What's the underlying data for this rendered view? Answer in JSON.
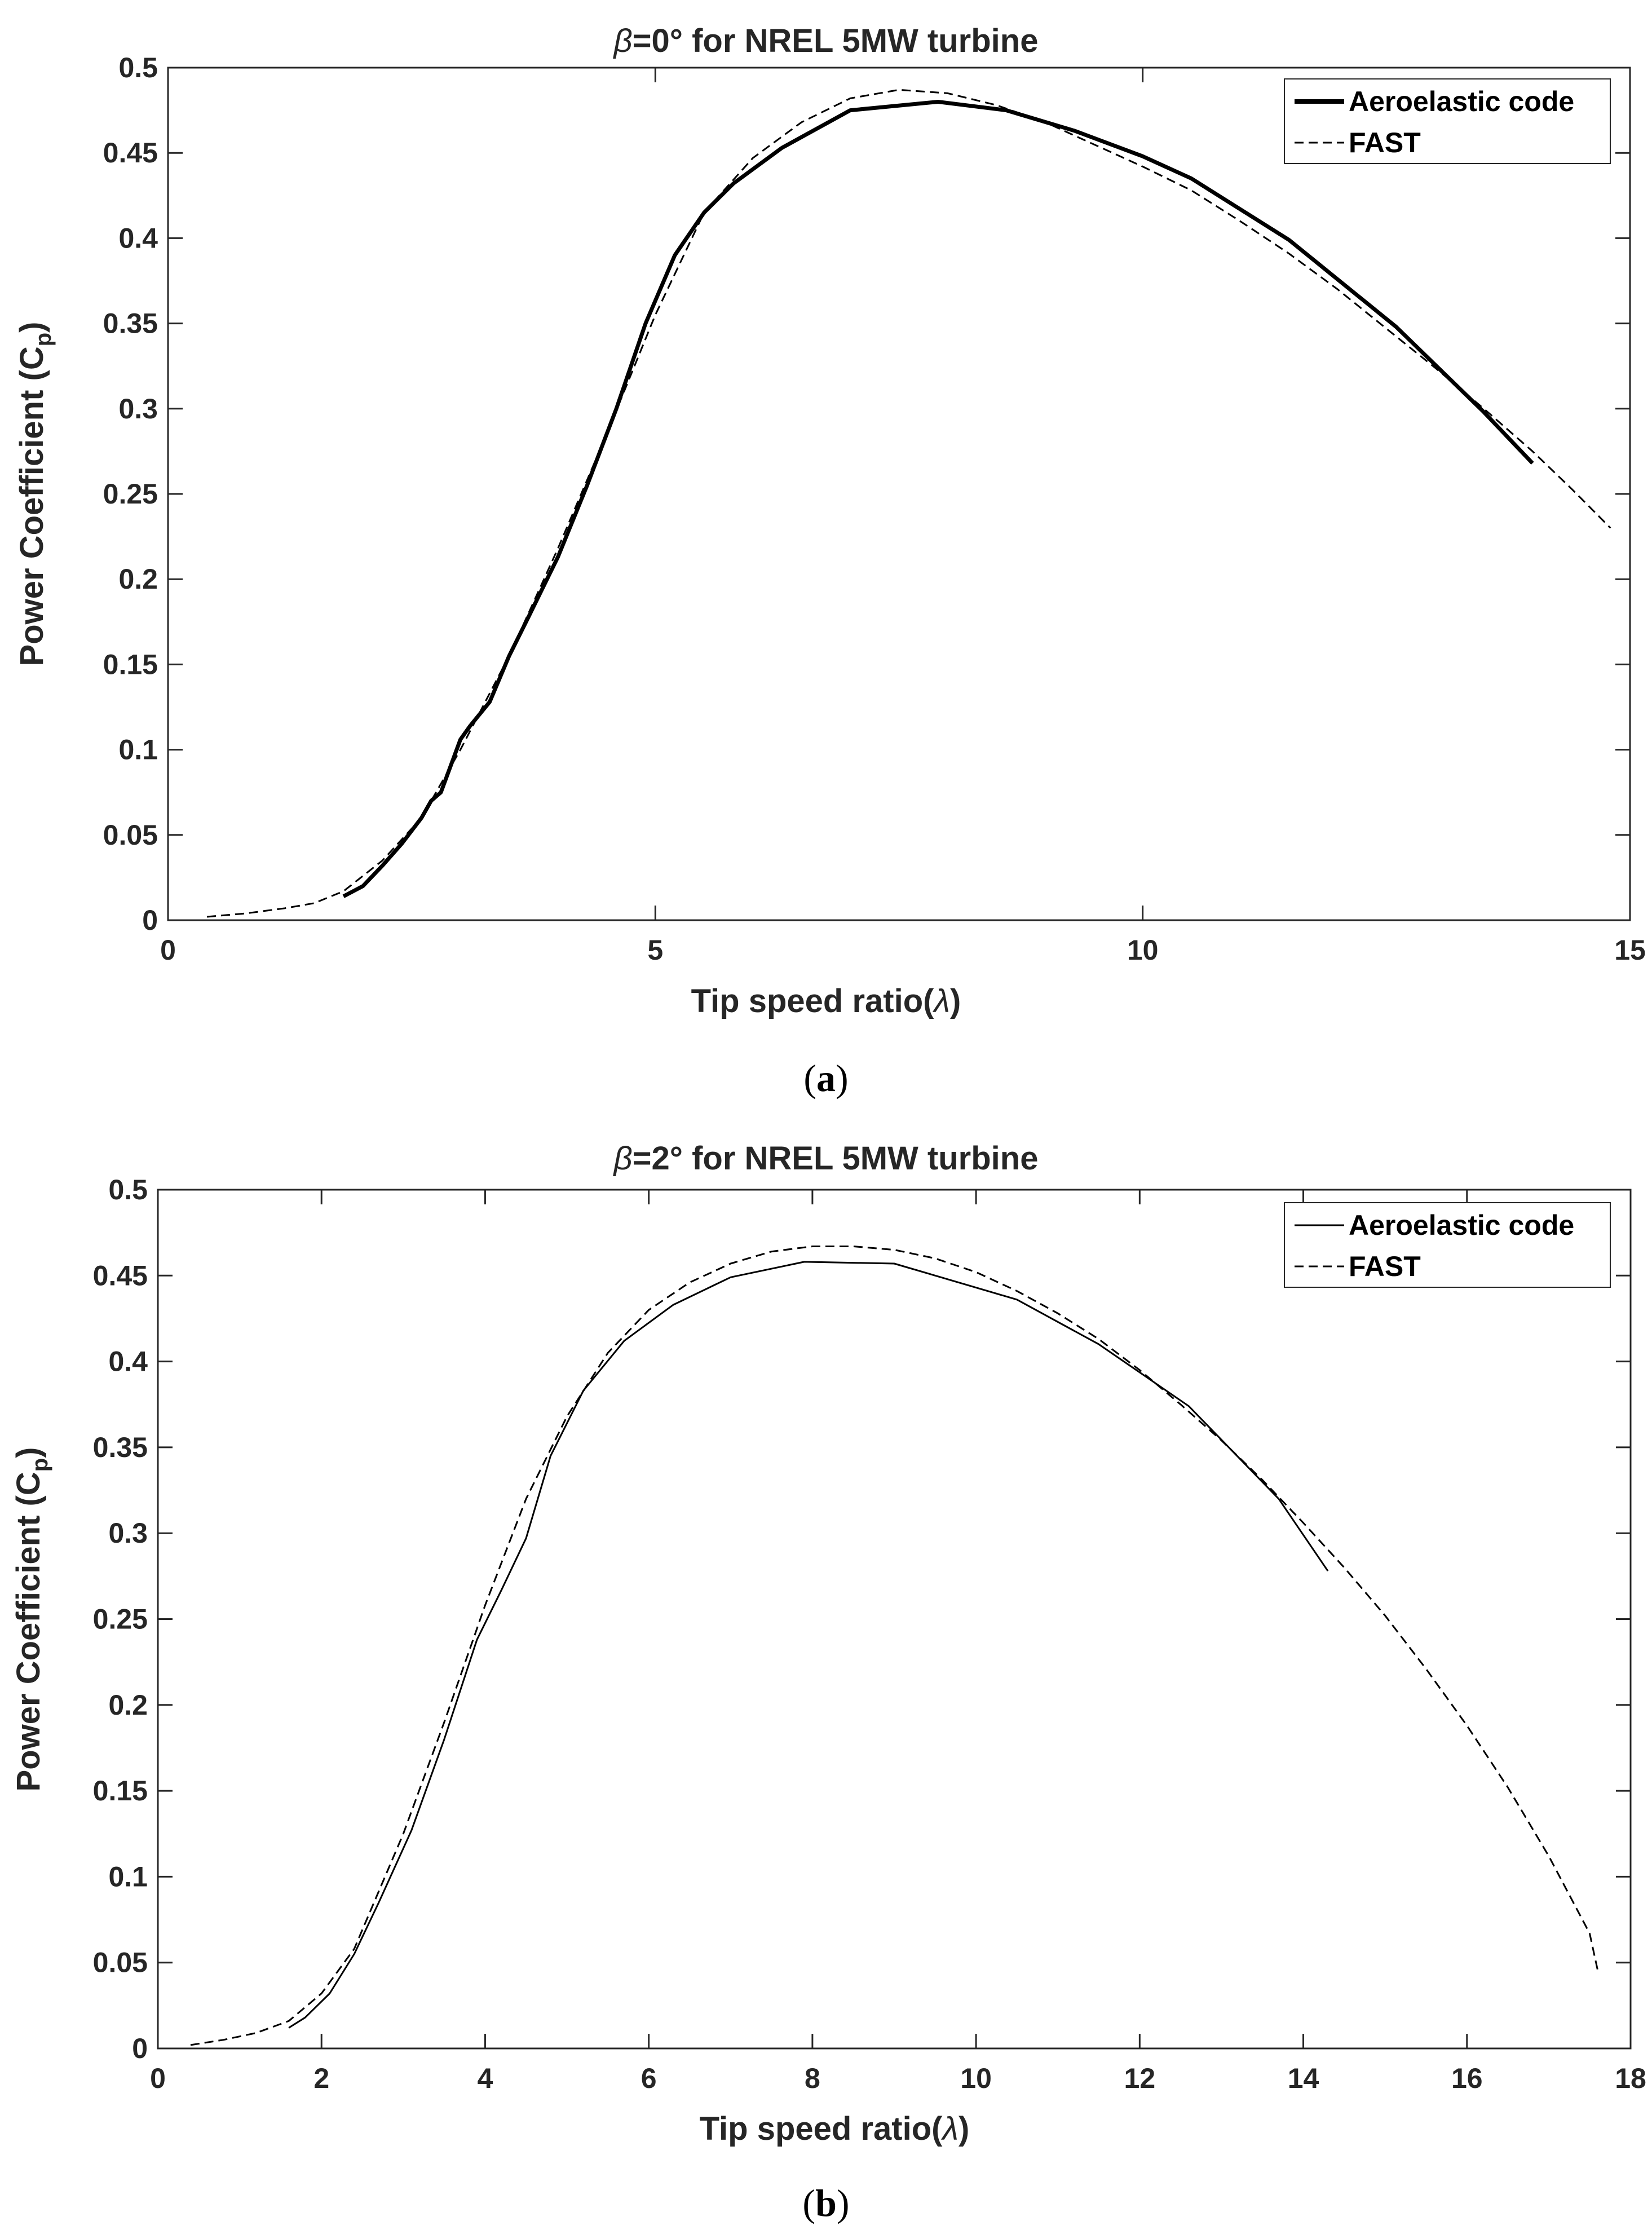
{
  "figure": {
    "captions": [
      {
        "open": "(",
        "letter": "a",
        "close": ")"
      },
      {
        "open": "(",
        "letter": "b",
        "close": ")"
      }
    ]
  },
  "chart_data": [
    {
      "type": "line",
      "title_symbol": "β",
      "title": "=0° for NREL 5MW turbine",
      "xlabel_prefix": "Tip speed ratio(",
      "xlabel_symbol": "λ",
      "xlabel_suffix": ")",
      "ylabel_main": "Power Coefficient (C",
      "ylabel_sub": "p",
      "ylabel_close": ")",
      "xlim": [
        0,
        15
      ],
      "ylim": [
        0,
        0.5
      ],
      "xticks": [
        0,
        5,
        10,
        15
      ],
      "yticks": [
        0,
        0.05,
        0.1,
        0.15,
        0.2,
        0.25,
        0.3,
        0.35,
        0.4,
        0.45,
        0.5
      ],
      "legend_position": "top-right",
      "series": [
        {
          "name": "Aeroelastic code",
          "style": "solid-thick",
          "color": "#000000",
          "x": [
            1.8,
            2.0,
            2.2,
            2.4,
            2.6,
            2.7,
            2.8,
            3.0,
            3.1,
            3.3,
            3.5,
            3.7,
            4.0,
            4.3,
            4.6,
            4.9,
            5.2,
            5.5,
            5.8,
            6.3,
            7.0,
            7.9,
            8.6,
            9.3,
            10.0,
            10.5,
            11.5,
            12.6,
            13.5,
            14.0
          ],
          "y": [
            0.014,
            0.02,
            0.032,
            0.045,
            0.06,
            0.07,
            0.075,
            0.106,
            0.114,
            0.128,
            0.155,
            0.178,
            0.213,
            0.255,
            0.3,
            0.35,
            0.39,
            0.415,
            0.432,
            0.453,
            0.475,
            0.48,
            0.475,
            0.463,
            0.448,
            0.435,
            0.399,
            0.348,
            0.298,
            0.268
          ]
        },
        {
          "name": "FAST",
          "style": "dashed",
          "color": "#000000",
          "x": [
            0.4,
            0.8,
            1.2,
            1.5,
            1.8,
            2.2,
            2.6,
            3.0,
            3.5,
            4.0,
            4.5,
            5.0,
            5.5,
            6.0,
            6.5,
            7.0,
            7.5,
            8.0,
            8.5,
            9.0,
            9.5,
            10.0,
            10.5,
            11.0,
            11.5,
            12.0,
            12.5,
            13.0,
            13.5,
            14.0,
            14.4,
            14.8
          ],
          "y": [
            0.002,
            0.004,
            0.007,
            0.01,
            0.017,
            0.035,
            0.06,
            0.1,
            0.155,
            0.218,
            0.285,
            0.355,
            0.415,
            0.447,
            0.468,
            0.482,
            0.487,
            0.485,
            0.478,
            0.468,
            0.455,
            0.442,
            0.428,
            0.41,
            0.391,
            0.37,
            0.347,
            0.324,
            0.3,
            0.275,
            0.253,
            0.23
          ]
        }
      ]
    },
    {
      "type": "line",
      "title_symbol": "β",
      "title": "=2° for NREL 5MW turbine",
      "xlabel_prefix": "Tip speed ratio(",
      "xlabel_symbol": "λ",
      "xlabel_suffix": ")",
      "ylabel_main": "Power Coefficient (C",
      "ylabel_sub": "p",
      "ylabel_close": ")",
      "xlim": [
        0,
        18
      ],
      "ylim": [
        0,
        0.5
      ],
      "xticks": [
        0,
        2,
        4,
        6,
        8,
        10,
        12,
        14,
        16,
        18
      ],
      "yticks": [
        0,
        0.05,
        0.1,
        0.15,
        0.2,
        0.25,
        0.3,
        0.35,
        0.4,
        0.45,
        0.5
      ],
      "legend_position": "top-right",
      "series": [
        {
          "name": "Aeroelastic code",
          "style": "solid-thin",
          "color": "#000000",
          "x": [
            1.6,
            1.8,
            2.1,
            2.4,
            2.7,
            3.1,
            3.5,
            3.9,
            4.2,
            4.5,
            4.8,
            5.2,
            5.7,
            6.3,
            7.0,
            7.9,
            9.0,
            10.5,
            11.5,
            12.6,
            13.7,
            14.3
          ],
          "y": [
            0.012,
            0.018,
            0.032,
            0.055,
            0.085,
            0.127,
            0.18,
            0.238,
            0.267,
            0.297,
            0.345,
            0.383,
            0.412,
            0.433,
            0.449,
            0.458,
            0.457,
            0.436,
            0.41,
            0.374,
            0.32,
            0.278
          ]
        },
        {
          "name": "FAST",
          "style": "dashed",
          "color": "#000000",
          "x": [
            0.4,
            0.8,
            1.2,
            1.6,
            2.0,
            2.4,
            3.0,
            3.5,
            4.0,
            4.5,
            5.0,
            5.5,
            6.0,
            6.5,
            7.0,
            7.5,
            8.0,
            8.5,
            9.0,
            9.5,
            10.0,
            10.5,
            11.0,
            11.5,
            12.0,
            12.5,
            13.0,
            13.5,
            14.0,
            14.5,
            15.0,
            15.5,
            16.0,
            16.5,
            17.0,
            17.5,
            17.6
          ],
          "y": [
            0.002,
            0.005,
            0.009,
            0.016,
            0.032,
            0.058,
            0.125,
            0.19,
            0.258,
            0.32,
            0.368,
            0.405,
            0.43,
            0.446,
            0.457,
            0.464,
            0.467,
            0.467,
            0.465,
            0.46,
            0.452,
            0.441,
            0.428,
            0.413,
            0.395,
            0.375,
            0.354,
            0.331,
            0.306,
            0.28,
            0.252,
            0.221,
            0.188,
            0.152,
            0.112,
            0.067,
            0.045
          ]
        }
      ]
    }
  ]
}
